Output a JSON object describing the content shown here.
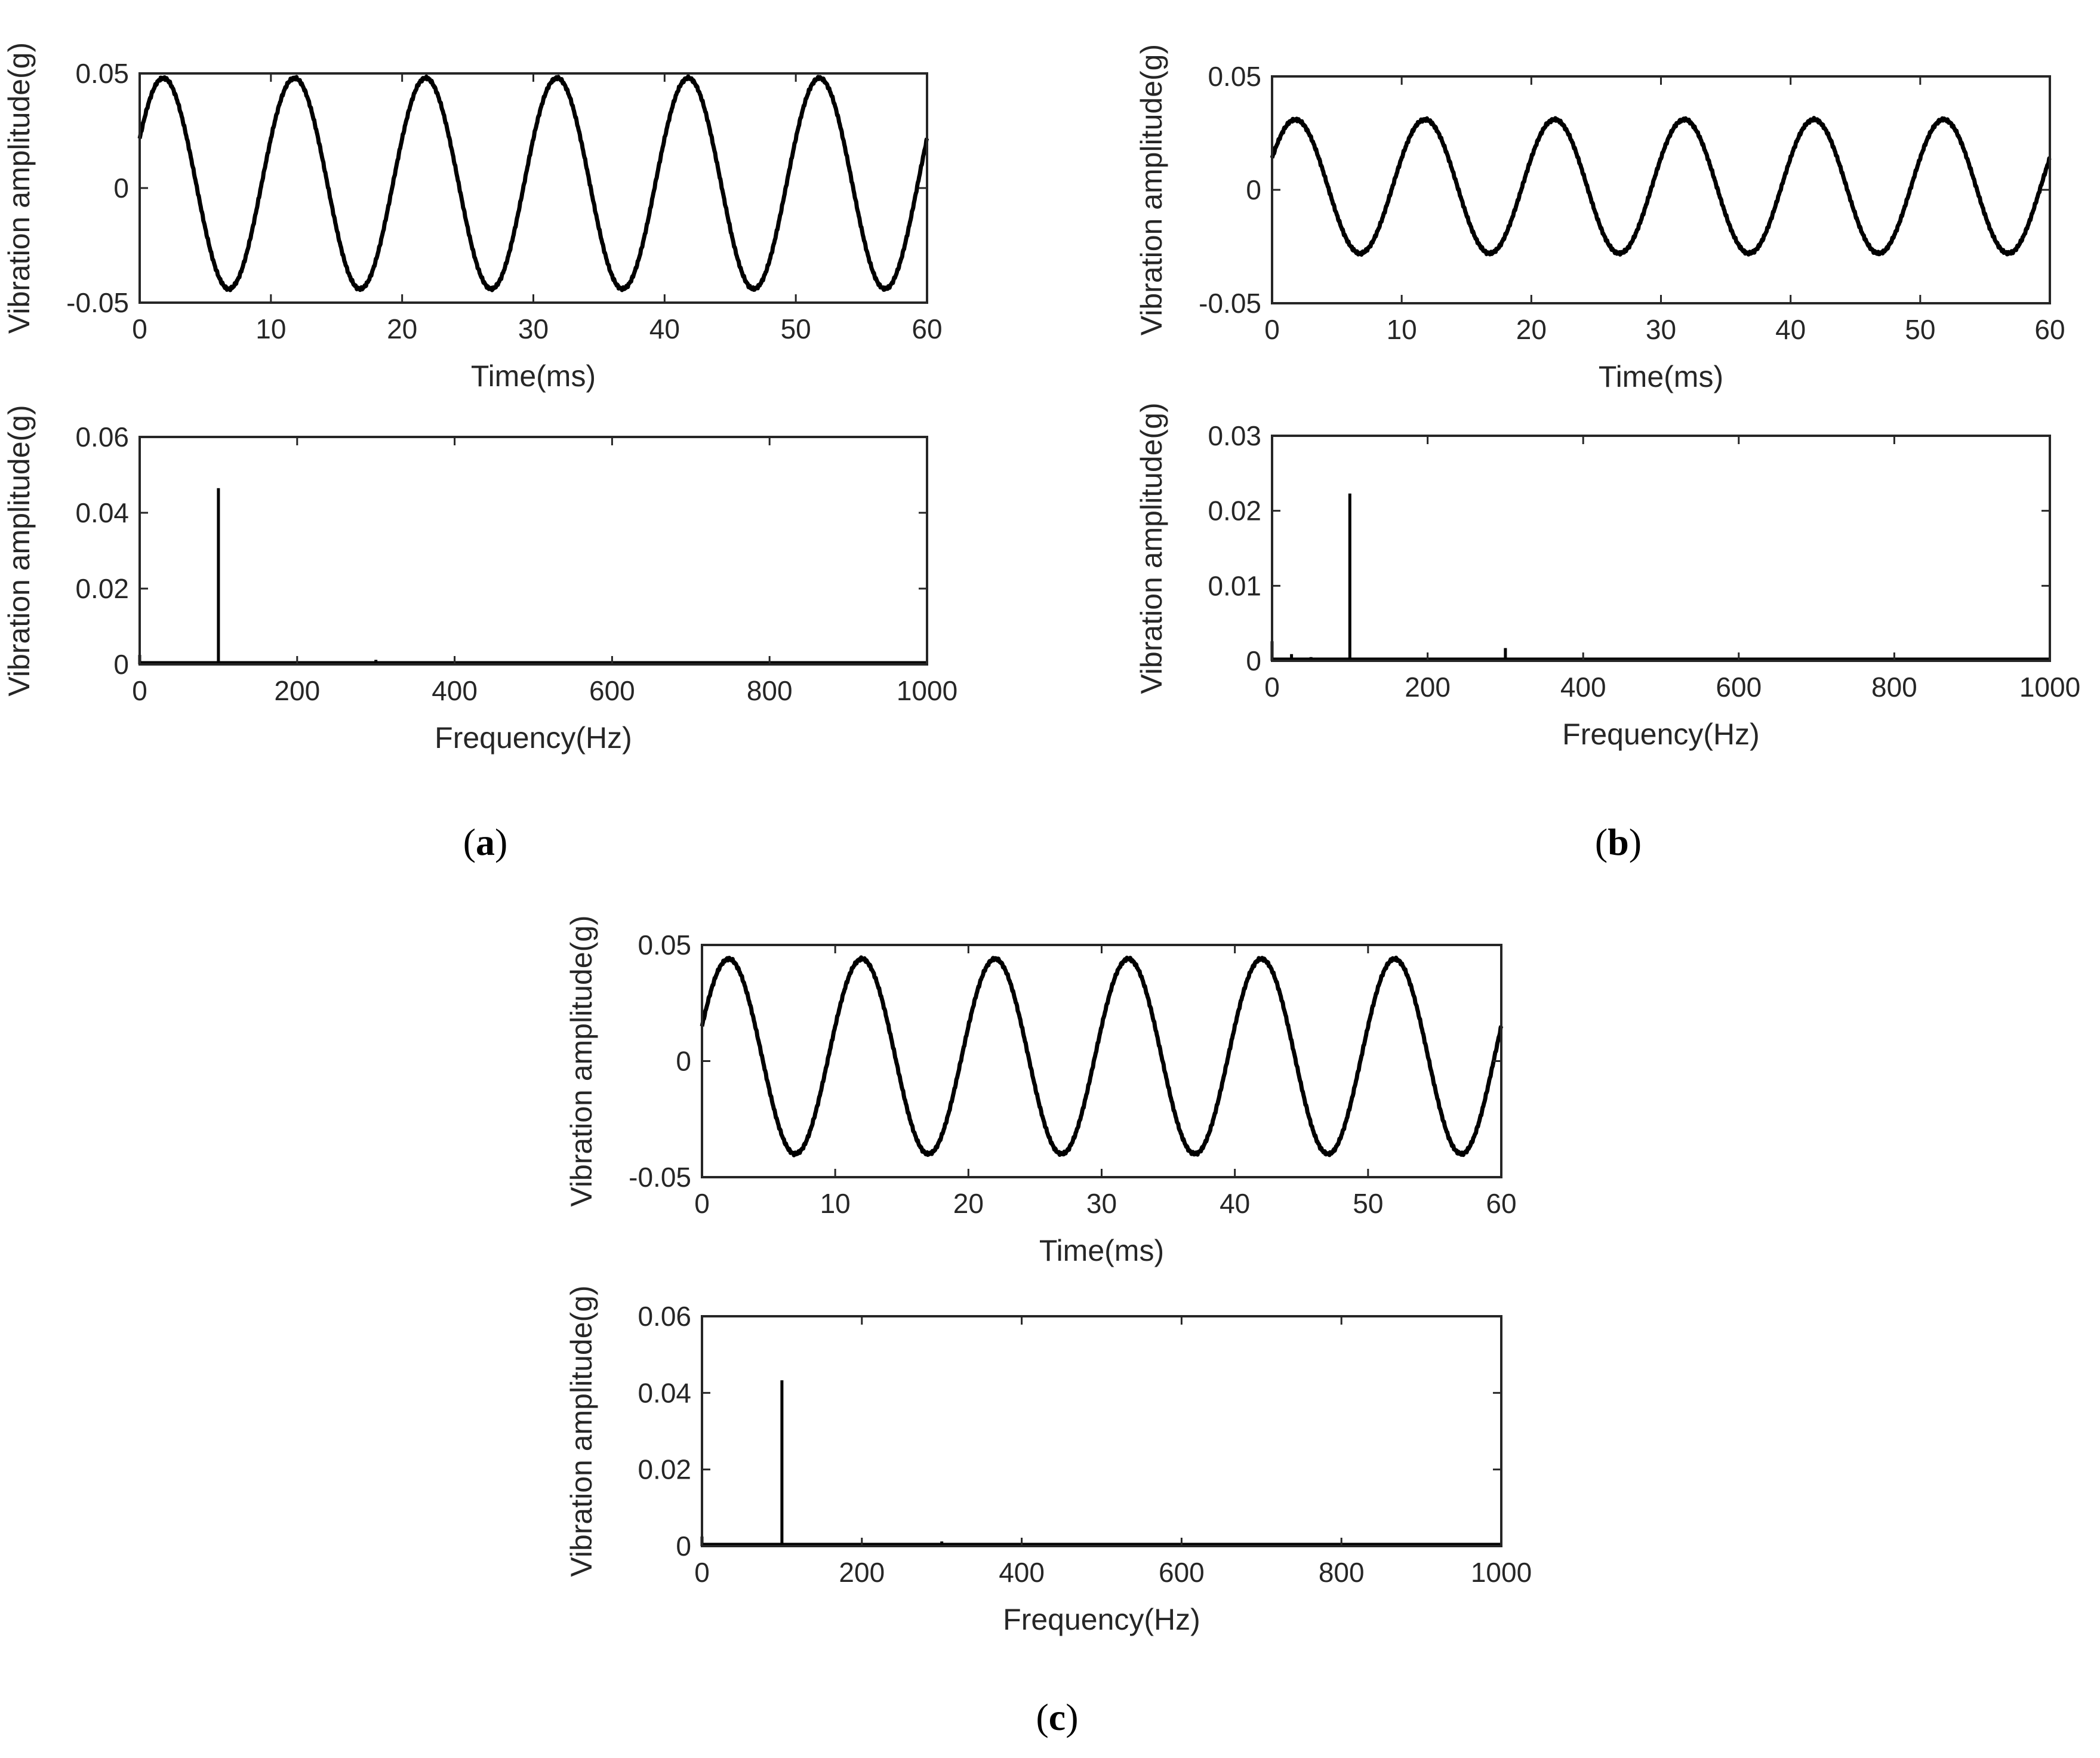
{
  "figure": {
    "panels": [
      {
        "id": "a",
        "label_open": "(",
        "label_letter": "a",
        "label_close": ")"
      },
      {
        "id": "b",
        "label_open": "(",
        "label_letter": "b",
        "label_close": ")"
      },
      {
        "id": "c",
        "label_open": "(",
        "label_letter": "c",
        "label_close": ")"
      }
    ]
  },
  "chart_data": [
    {
      "panel": "a",
      "position": "top",
      "type": "line",
      "title": "",
      "xlabel": "Time(ms)",
      "ylabel": "Vibration amplitude(g)",
      "xlim": [
        0,
        60
      ],
      "ylim": [
        -0.05,
        0.05
      ],
      "xticks": [
        0,
        10,
        20,
        30,
        40,
        50,
        60
      ],
      "yticks": [
        -0.05,
        0,
        0.05
      ],
      "ytick_labels": [
        "-0.05",
        "0",
        "0.05"
      ],
      "grid": false,
      "signal": {
        "frequency_hz": 100,
        "peak": 0.048,
        "trough": -0.044,
        "value_at_t0": 0.022,
        "value_at_t60": 0.01
      },
      "peaks_ms": [
        1.8,
        11.9,
        21.9,
        32.0,
        42.0,
        52.2
      ],
      "troughs_ms": [
        6.9,
        17.0,
        27.0,
        37.0,
        47.1,
        57.2
      ]
    },
    {
      "panel": "a",
      "position": "bottom",
      "type": "line",
      "title": "",
      "xlabel": "Frequency(Hz)",
      "ylabel": "Vibration amplitude(g)",
      "xlim": [
        0,
        1000
      ],
      "ylim": [
        0,
        0.06
      ],
      "xticks": [
        0,
        200,
        400,
        600,
        800,
        1000
      ],
      "yticks": [
        0,
        0.02,
        0.04,
        0.06
      ],
      "ytick_labels": [
        "0",
        "0.02",
        "0.04",
        "0.06"
      ],
      "grid": false,
      "peaks": [
        {
          "x": 0,
          "y": 0.0025
        },
        {
          "x": 50,
          "y": 0.0005
        },
        {
          "x": 100,
          "y": 0.0465
        },
        {
          "x": 200,
          "y": 0.0004
        },
        {
          "x": 300,
          "y": 0.0012
        },
        {
          "x": 400,
          "y": 0.0003
        },
        {
          "x": 500,
          "y": 0.0002
        }
      ]
    },
    {
      "panel": "b",
      "position": "top",
      "type": "line",
      "title": "",
      "xlabel": "Time(ms)",
      "ylabel": "Vibration amplitude(g)",
      "xlim": [
        0,
        60
      ],
      "ylim": [
        -0.05,
        0.05
      ],
      "xticks": [
        0,
        10,
        20,
        30,
        40,
        50,
        60
      ],
      "yticks": [
        -0.05,
        0,
        0.05
      ],
      "ytick_labels": [
        "-0.05",
        "0",
        "0.05"
      ],
      "grid": false,
      "signal": {
        "frequency_hz": 100,
        "peak": 0.031,
        "trough": -0.028,
        "value_at_t0": 0.022,
        "value_at_t60": 0.017
      },
      "peaks_ms": [
        1.8,
        11.9,
        21.9,
        31.9,
        41.9,
        52.0
      ],
      "troughs_ms": [
        6.7,
        16.9,
        26.8,
        36.8,
        46.8,
        56.8
      ]
    },
    {
      "panel": "b",
      "position": "bottom",
      "type": "line",
      "title": "",
      "xlabel": "Frequency(Hz)",
      "ylabel": "Vibration amplitude(g)",
      "xlim": [
        0,
        1000
      ],
      "ylim": [
        0,
        0.03
      ],
      "xticks": [
        0,
        200,
        400,
        600,
        800,
        1000
      ],
      "yticks": [
        0,
        0.01,
        0.02,
        0.03
      ],
      "ytick_labels": [
        "0",
        "0.01",
        "0.02",
        "0.03"
      ],
      "grid": false,
      "peaks": [
        {
          "x": 0,
          "y": 0.0026
        },
        {
          "x": 25,
          "y": 0.0009
        },
        {
          "x": 50,
          "y": 0.0005
        },
        {
          "x": 100,
          "y": 0.0223
        },
        {
          "x": 200,
          "y": 0.0003
        },
        {
          "x": 300,
          "y": 0.0017
        },
        {
          "x": 400,
          "y": 0.0002
        }
      ]
    },
    {
      "panel": "c",
      "position": "top",
      "type": "line",
      "title": "",
      "xlabel": "Time(ms)",
      "ylabel": "Vibration amplitude(g)",
      "xlim": [
        0,
        60
      ],
      "ylim": [
        -0.05,
        0.05
      ],
      "xticks": [
        0,
        10,
        20,
        30,
        40,
        50,
        60
      ],
      "yticks": [
        -0.05,
        0,
        0.05
      ],
      "ytick_labels": [
        "-0.05",
        "0",
        "0.05"
      ],
      "grid": false,
      "signal": {
        "frequency_hz": 100,
        "peak": 0.044,
        "trough": -0.04,
        "value_at_t0": 0.016,
        "value_at_t60": 0.001
      },
      "peaks_ms": [
        2.0,
        12.0,
        22.0,
        32.2,
        42.1,
        52.2
      ],
      "troughs_ms": [
        7.2,
        17.1,
        27.3,
        37.1,
        47.3,
        57.3
      ]
    },
    {
      "panel": "c",
      "position": "bottom",
      "type": "line",
      "title": "",
      "xlabel": "Frequency(Hz)",
      "ylabel": "Vibration amplitude(g)",
      "xlim": [
        0,
        1000
      ],
      "ylim": [
        0,
        0.06
      ],
      "xticks": [
        0,
        200,
        400,
        600,
        800,
        1000
      ],
      "yticks": [
        0,
        0.02,
        0.04,
        0.06
      ],
      "ytick_labels": [
        "0",
        "0.02",
        "0.04",
        "0.06"
      ],
      "grid": false,
      "peaks": [
        {
          "x": 0,
          "y": 0.0025
        },
        {
          "x": 50,
          "y": 0.0003
        },
        {
          "x": 100,
          "y": 0.0433
        },
        {
          "x": 200,
          "y": 0.0006
        },
        {
          "x": 300,
          "y": 0.0012
        },
        {
          "x": 400,
          "y": 0.0004
        },
        {
          "x": 500,
          "y": 0.0002
        }
      ]
    }
  ]
}
